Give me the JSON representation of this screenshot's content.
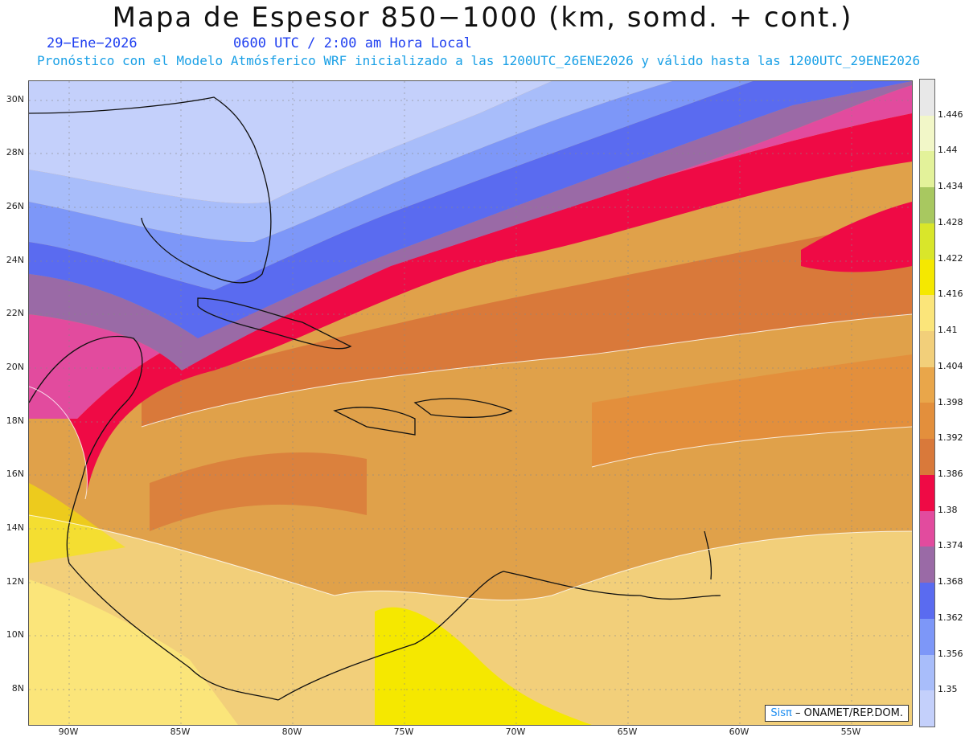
{
  "title": "Mapa de Espesor 850−1000 (km, somd. + cont.)",
  "date": "29−Ene−2026",
  "time": "0600 UTC / 2:00 am Hora Local",
  "subtitle": "Pronóstico con el Modelo Atmósferico WRF inicializado a las 1200UTC_26ENE2026 y válido hasta las  1200UTC_29ENE2026",
  "credit": {
    "brand": "Sisπ",
    "text": "– ONAMET/REP.DOM."
  },
  "lat_labels": [
    "30N",
    "28N",
    "26N",
    "24N",
    "22N",
    "20N",
    "18N",
    "16N",
    "14N",
    "12N",
    "10N",
    "8N"
  ],
  "lon_labels": [
    "90W",
    "85W",
    "80W",
    "75W",
    "70W",
    "65W",
    "60W",
    "55W"
  ],
  "colorbar": {
    "labels": [
      "1.446",
      "1.44",
      "1.434",
      "1.428",
      "1.422",
      "1.416",
      "1.41",
      "1.404",
      "1.398",
      "1.392",
      "1.386",
      "1.38",
      "1.374",
      "1.368",
      "1.362",
      "1.356",
      "1.35"
    ],
    "colors": [
      "#e8e8e8",
      "#f2f7c8",
      "#e3f29a",
      "#a8c860",
      "#d9e62a",
      "#f5e800",
      "#fbe57a",
      "#f2cf7a",
      "#e9a64a",
      "#e38f3c",
      "#d9793a",
      "#ef0a45",
      "#e24b9e",
      "#9a6aa6",
      "#5a6bf0",
      "#7d97f8",
      "#a8bdfa",
      "#c4d0fb"
    ]
  }
}
